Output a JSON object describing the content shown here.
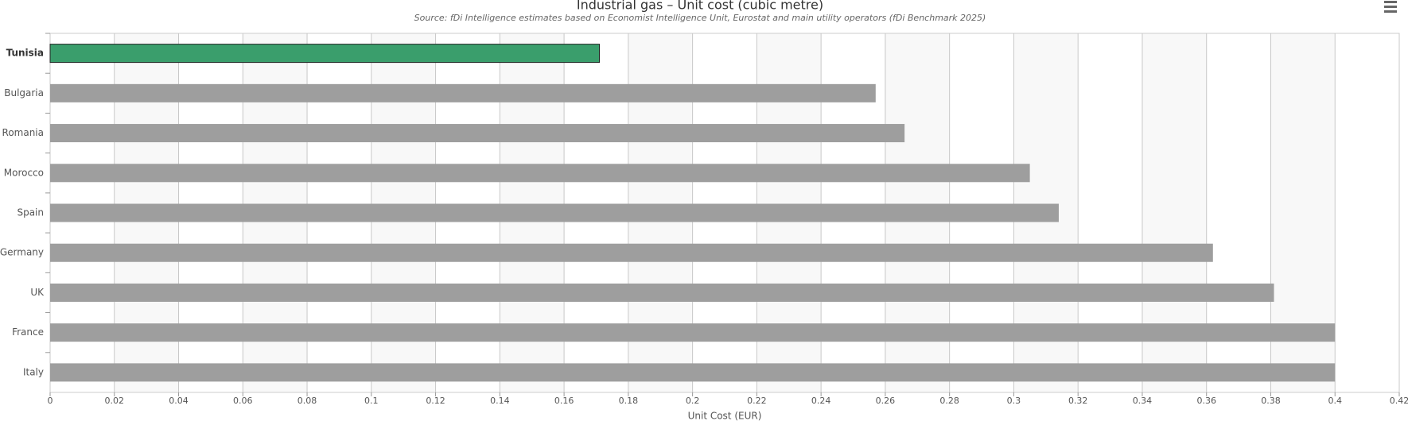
{
  "chart_data": {
    "type": "hbar",
    "title": "Industrial gas – Unit cost (cubic metre)",
    "subtitle": "Source: fDi Intelligence estimates based on Economist Intelligence Unit, Eurostat and main utility operators (fDi Benchmark 2025)",
    "x_label": "Unit Cost (EUR)",
    "categories": [
      "Tunisia",
      "Bulgaria",
      "Romania",
      "Morocco",
      "Spain",
      "Germany",
      "UK",
      "France",
      "Italy"
    ],
    "values": [
      0.171,
      0.257,
      0.266,
      0.305,
      0.314,
      0.362,
      0.381,
      0.4,
      0.4
    ],
    "colors": [
      "#3a9e6c",
      "#9e9e9e",
      "#9e9e9e",
      "#9e9e9e",
      "#9e9e9e",
      "#9e9e9e",
      "#9e9e9e",
      "#9e9e9e",
      "#9e9e9e"
    ],
    "xlim": [
      0,
      0.42
    ],
    "xticks": [
      0,
      0.02,
      0.04,
      0.06,
      0.08,
      0.1,
      0.12,
      0.14,
      0.16,
      0.18,
      0.2,
      0.22,
      0.24,
      0.26,
      0.28,
      0.3,
      0.32,
      0.34,
      0.36,
      0.38,
      0.4,
      0.42
    ],
    "grid": true
  }
}
